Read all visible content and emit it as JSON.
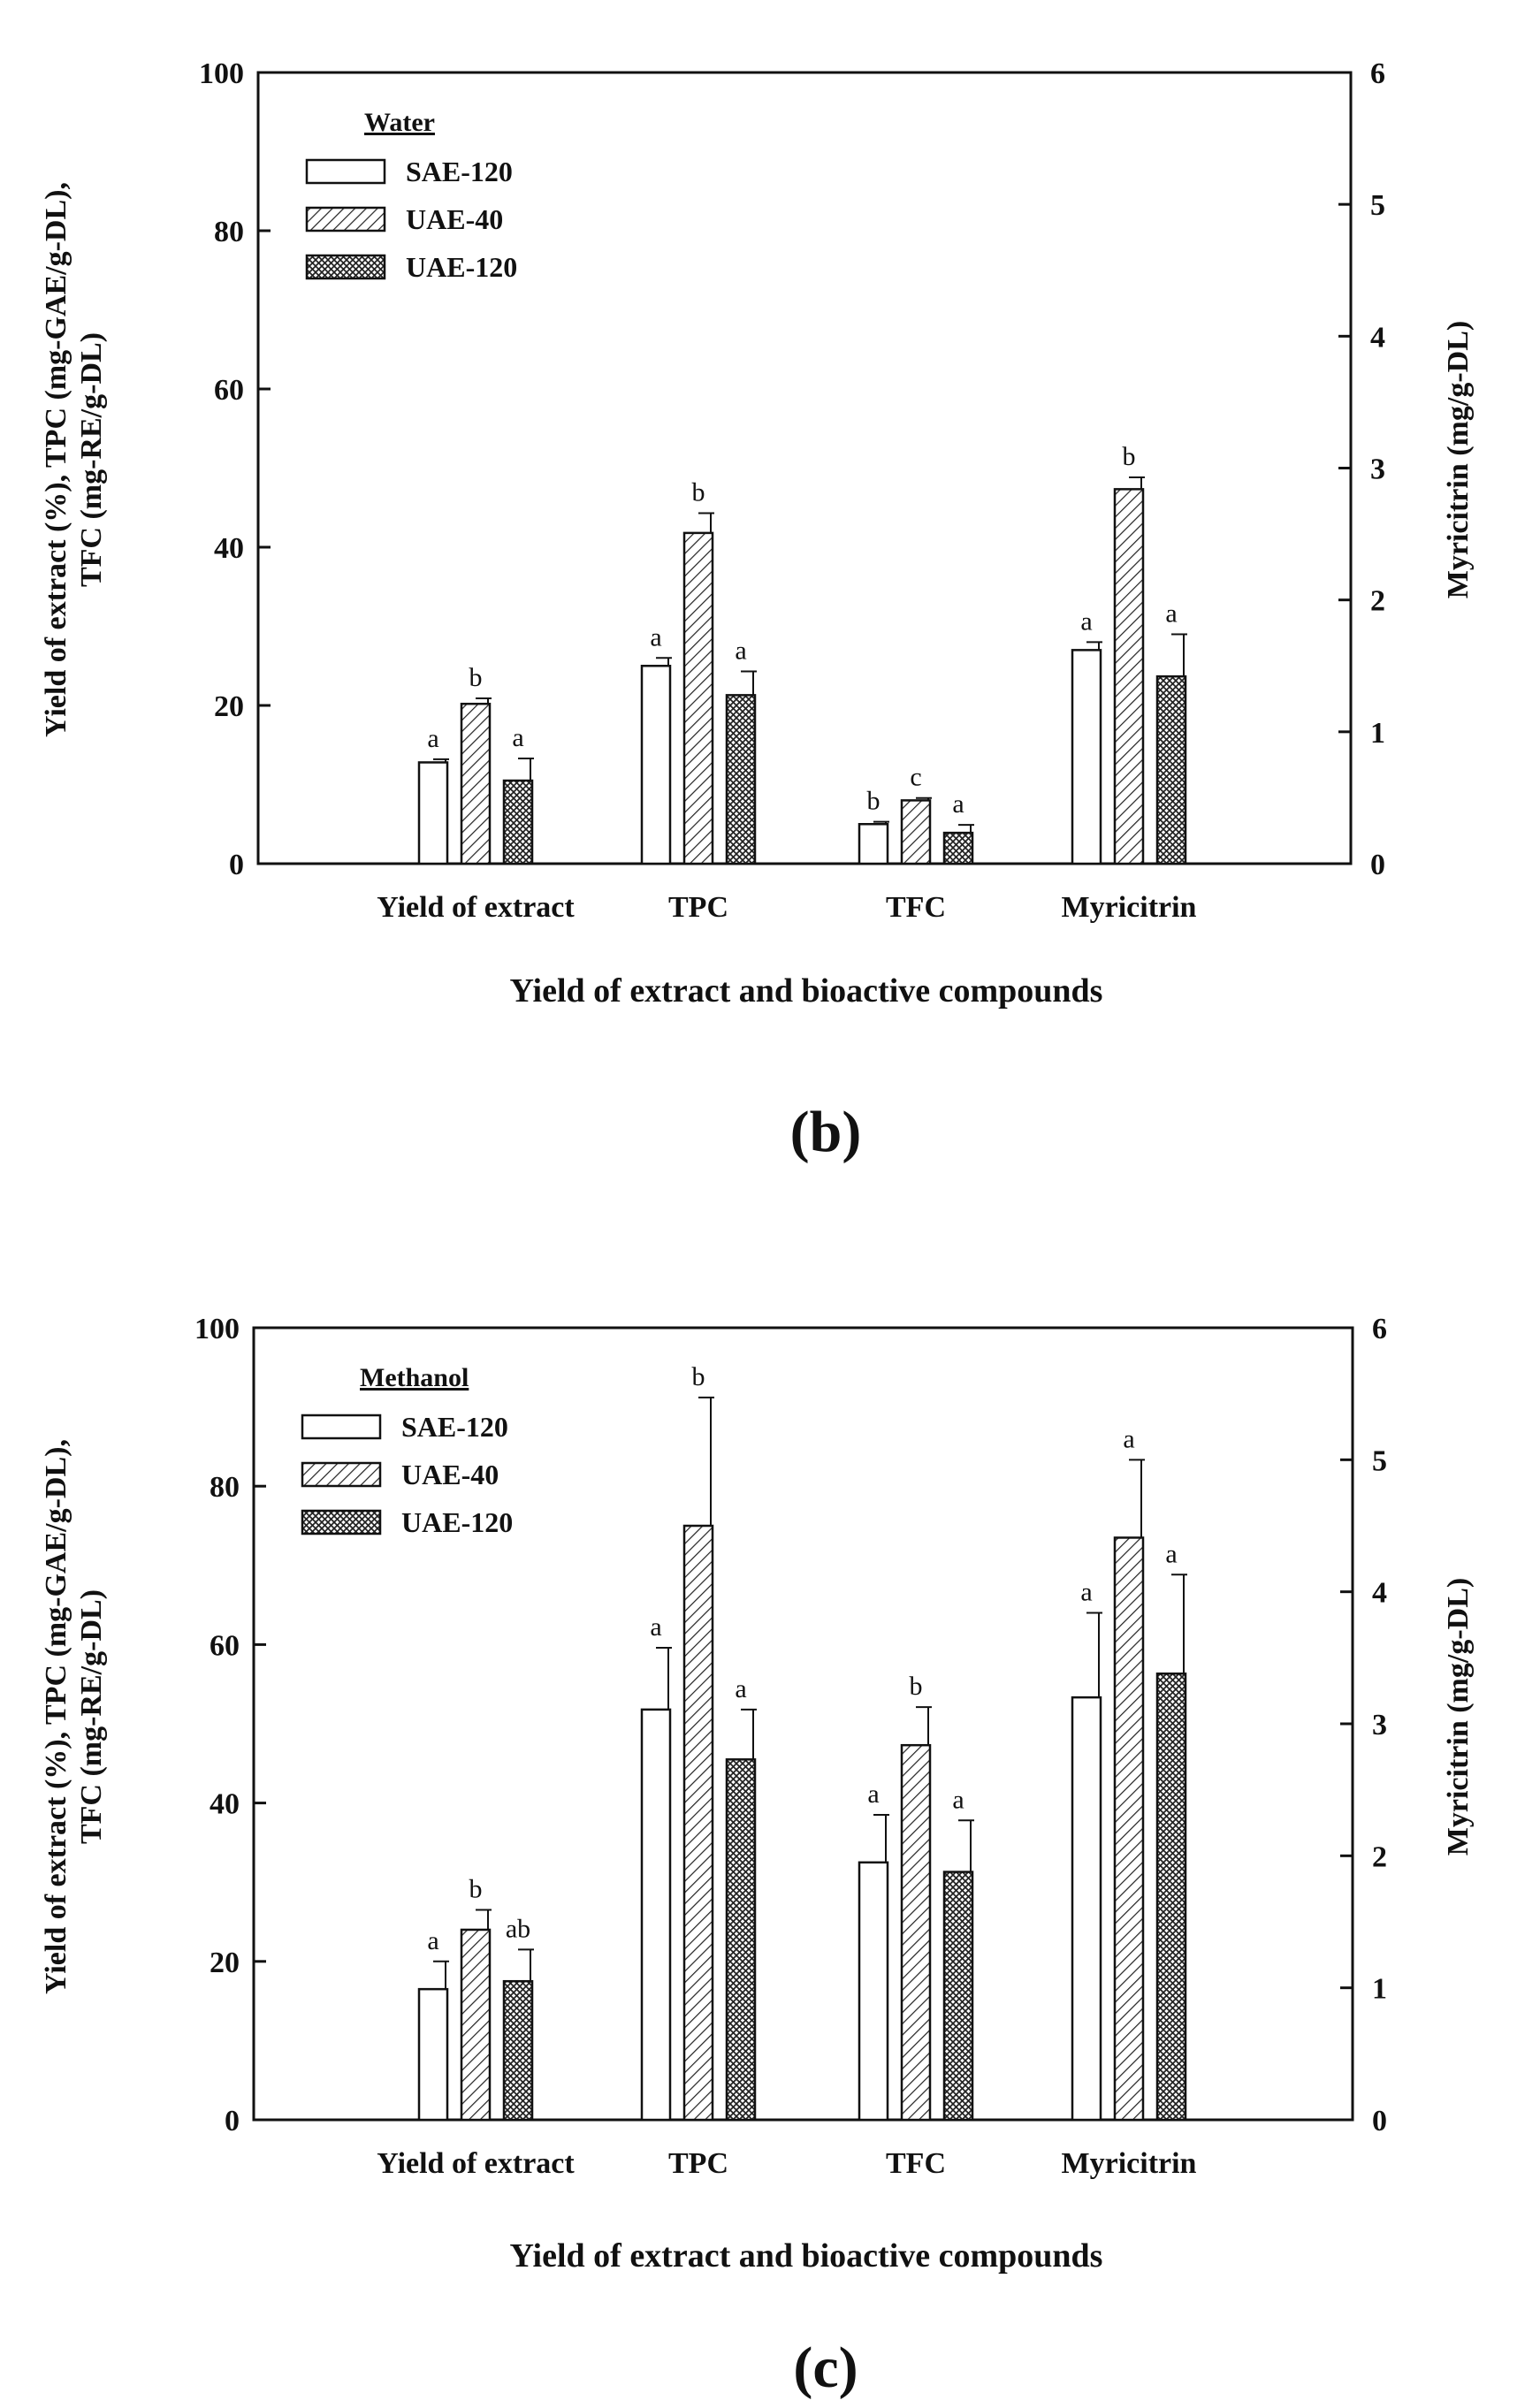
{
  "figure": {
    "panels": [
      {
        "id": "b",
        "label": "(b)"
      },
      {
        "id": "c",
        "label": "(c)"
      }
    ]
  },
  "chart_data": [
    {
      "type": "bar",
      "panel": "(b)",
      "legend_title": "Water",
      "categories": [
        "Yield of extract",
        "TPC",
        "TFC",
        "Myricitrin"
      ],
      "xlabel": "Yield of extract and bioactive compounds",
      "ylabel_left_line1": "Yield of extract (%), TPC (mg-GAE/g-DL),",
      "ylabel_left_line2": "TFC (mg-RE/g-DL)",
      "ylabel_right": "Myricitrin (mg/g-DL)",
      "ylim_left": [
        0,
        100
      ],
      "yticks_left": [
        0,
        20,
        40,
        60,
        80,
        100
      ],
      "ylim_right": [
        0,
        6
      ],
      "yticks_right": [
        0,
        1,
        2,
        3,
        4,
        5,
        6
      ],
      "myricitrin_uses_right_axis": true,
      "series": [
        {
          "name": "SAE-120",
          "pattern": "open",
          "values": [
            12.8,
            25.0,
            5.0,
            1.62
          ],
          "errors": [
            0.4,
            1.0,
            0.3,
            0.06
          ],
          "letters": [
            "a",
            "a",
            "b",
            "a"
          ]
        },
        {
          "name": "UAE-40",
          "pattern": "hatch",
          "values": [
            20.2,
            41.8,
            8.0,
            2.84
          ],
          "errors": [
            0.7,
            2.5,
            0.3,
            0.09
          ],
          "letters": [
            "b",
            "b",
            "c",
            "b"
          ]
        },
        {
          "name": "UAE-120",
          "pattern": "crosshatch",
          "values": [
            10.5,
            21.3,
            3.9,
            1.42
          ],
          "errors": [
            2.8,
            3.0,
            1.0,
            0.32
          ],
          "letters": [
            "a",
            "a",
            "a",
            "a"
          ]
        }
      ]
    },
    {
      "type": "bar",
      "panel": "(c)",
      "legend_title": "Methanol",
      "categories": [
        "Yield of extract",
        "TPC",
        "TFC",
        "Myricitrin"
      ],
      "xlabel": "Yield of extract and bioactive compounds",
      "ylabel_left_line1": "Yield of extract (%), TPC (mg-GAE/g-DL),",
      "ylabel_left_line2": "TFC (mg-RE/g-DL)",
      "ylabel_right": "Myricitrin (mg/g-DL)",
      "ylim_left": [
        0,
        100
      ],
      "yticks_left": [
        0,
        20,
        40,
        60,
        80,
        100
      ],
      "ylim_right": [
        0,
        6
      ],
      "yticks_right": [
        0,
        1,
        2,
        3,
        4,
        5,
        6
      ],
      "myricitrin_uses_right_axis": true,
      "series": [
        {
          "name": "SAE-120",
          "pattern": "open",
          "values": [
            16.5,
            51.8,
            32.5,
            3.2
          ],
          "errors": [
            3.5,
            7.8,
            6.0,
            0.64
          ],
          "letters": [
            "a",
            "a",
            "a",
            "a"
          ]
        },
        {
          "name": "UAE-40",
          "pattern": "hatch",
          "values": [
            24.0,
            75.0,
            47.3,
            4.41
          ],
          "errors": [
            2.5,
            16.2,
            4.8,
            0.59
          ],
          "letters": [
            "b",
            "b",
            "b",
            "a"
          ]
        },
        {
          "name": "UAE-120",
          "pattern": "crosshatch",
          "values": [
            17.5,
            45.5,
            31.3,
            3.38
          ],
          "errors": [
            4.0,
            6.3,
            6.5,
            0.75
          ],
          "letters": [
            "ab",
            "a",
            "a",
            "a"
          ]
        }
      ]
    }
  ]
}
